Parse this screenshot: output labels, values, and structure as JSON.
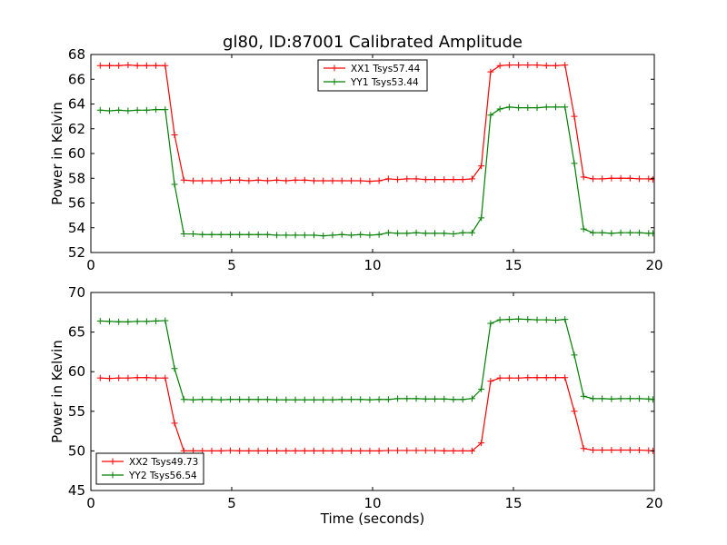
{
  "figure": {
    "title": "gl80, ID:87001 Calibrated Amplitude"
  },
  "chart_data": [
    {
      "type": "line",
      "xlabel": "",
      "ylabel": "Power in Kelvin",
      "xlim": [
        0,
        20
      ],
      "ylim": [
        52,
        68
      ],
      "xticks": [
        0,
        5,
        10,
        15,
        20
      ],
      "yticks": [
        52,
        54,
        56,
        58,
        60,
        62,
        64,
        66,
        68
      ],
      "legend_position": "top-center",
      "grid": false,
      "x": [
        0.33,
        0.66,
        0.99,
        1.32,
        1.65,
        1.98,
        2.31,
        2.64,
        2.97,
        3.3,
        3.63,
        3.96,
        4.29,
        4.62,
        4.95,
        5.28,
        5.61,
        5.94,
        6.27,
        6.6,
        6.93,
        7.26,
        7.59,
        7.92,
        8.25,
        8.58,
        8.91,
        9.24,
        9.57,
        9.9,
        10.23,
        10.56,
        10.89,
        11.22,
        11.55,
        11.88,
        12.21,
        12.54,
        12.87,
        13.2,
        13.53,
        13.86,
        14.19,
        14.52,
        14.85,
        15.18,
        15.51,
        15.84,
        16.17,
        16.5,
        16.83,
        17.16,
        17.49,
        17.82,
        18.15,
        18.48,
        18.81,
        19.14,
        19.47,
        19.8,
        19.95
      ],
      "series": [
        {
          "name": "XX1 Tsys57.44",
          "color": "#ff0000",
          "values": [
            67.1,
            67.1,
            67.1,
            67.15,
            67.1,
            67.1,
            67.1,
            67.1,
            61.5,
            57.85,
            57.8,
            57.8,
            57.8,
            57.8,
            57.85,
            57.85,
            57.8,
            57.85,
            57.8,
            57.85,
            57.8,
            57.85,
            57.85,
            57.8,
            57.8,
            57.8,
            57.8,
            57.8,
            57.8,
            57.75,
            57.8,
            57.95,
            57.9,
            57.95,
            57.95,
            57.9,
            57.9,
            57.9,
            57.9,
            57.9,
            57.95,
            59.0,
            66.6,
            67.1,
            67.15,
            67.15,
            67.15,
            67.15,
            67.1,
            67.1,
            67.15,
            63.0,
            58.1,
            57.95,
            57.95,
            58.0,
            58.0,
            58.0,
            57.95,
            57.95,
            57.9
          ]
        },
        {
          "name": "YY1 Tsys53.44",
          "color": "#008000",
          "values": [
            63.5,
            63.45,
            63.5,
            63.45,
            63.5,
            63.5,
            63.55,
            63.55,
            57.5,
            53.5,
            53.5,
            53.45,
            53.45,
            53.45,
            53.45,
            53.45,
            53.45,
            53.45,
            53.45,
            53.4,
            53.4,
            53.4,
            53.4,
            53.4,
            53.35,
            53.4,
            53.45,
            53.4,
            53.45,
            53.4,
            53.45,
            53.6,
            53.55,
            53.55,
            53.6,
            53.55,
            53.55,
            53.55,
            53.5,
            53.6,
            53.6,
            54.8,
            63.1,
            63.6,
            63.75,
            63.7,
            63.7,
            63.7,
            63.75,
            63.75,
            63.75,
            59.2,
            53.9,
            53.6,
            53.6,
            53.55,
            53.6,
            53.6,
            53.6,
            53.55,
            53.55
          ]
        }
      ]
    },
    {
      "type": "line",
      "xlabel": "Time (seconds)",
      "ylabel": "Power in Kelvin",
      "xlim": [
        0,
        20
      ],
      "ylim": [
        45,
        70
      ],
      "xticks": [
        0,
        5,
        10,
        15,
        20
      ],
      "yticks": [
        45,
        50,
        55,
        60,
        65,
        70
      ],
      "legend_position": "lower-left",
      "grid": false,
      "x": [
        0.33,
        0.66,
        0.99,
        1.32,
        1.65,
        1.98,
        2.31,
        2.64,
        2.97,
        3.3,
        3.63,
        3.96,
        4.29,
        4.62,
        4.95,
        5.28,
        5.61,
        5.94,
        6.27,
        6.6,
        6.93,
        7.26,
        7.59,
        7.92,
        8.25,
        8.58,
        8.91,
        9.24,
        9.57,
        9.9,
        10.23,
        10.56,
        10.89,
        11.22,
        11.55,
        11.88,
        12.21,
        12.54,
        12.87,
        13.2,
        13.53,
        13.86,
        14.19,
        14.52,
        14.85,
        15.18,
        15.51,
        15.84,
        16.17,
        16.5,
        16.83,
        17.16,
        17.49,
        17.82,
        18.15,
        18.48,
        18.81,
        19.14,
        19.47,
        19.8,
        19.95
      ],
      "series": [
        {
          "name": "XX2 Tsys49.73",
          "color": "#ff0000",
          "values": [
            59.2,
            59.15,
            59.2,
            59.2,
            59.25,
            59.25,
            59.2,
            59.2,
            53.5,
            50.0,
            50.0,
            50.0,
            50.0,
            50.0,
            50.05,
            50.0,
            50.0,
            50.0,
            50.0,
            50.0,
            50.0,
            50.0,
            50.0,
            50.0,
            50.0,
            50.0,
            50.0,
            50.0,
            50.0,
            50.0,
            50.0,
            50.05,
            50.05,
            50.05,
            50.05,
            50.05,
            50.05,
            50.0,
            50.0,
            50.0,
            50.0,
            51.0,
            58.8,
            59.2,
            59.2,
            59.2,
            59.25,
            59.25,
            59.25,
            59.25,
            59.25,
            55.0,
            50.3,
            50.1,
            50.1,
            50.1,
            50.1,
            50.1,
            50.1,
            50.05,
            50.0
          ]
        },
        {
          "name": "YY2 Tsys56.54",
          "color": "#008000",
          "values": [
            66.4,
            66.35,
            66.3,
            66.3,
            66.35,
            66.35,
            66.4,
            66.45,
            60.4,
            56.5,
            56.45,
            56.5,
            56.5,
            56.45,
            56.5,
            56.5,
            56.5,
            56.5,
            56.5,
            56.45,
            56.45,
            56.45,
            56.45,
            56.45,
            56.45,
            56.45,
            56.5,
            56.5,
            56.5,
            56.45,
            56.5,
            56.5,
            56.6,
            56.6,
            56.6,
            56.55,
            56.55,
            56.55,
            56.5,
            56.5,
            56.6,
            57.8,
            66.1,
            66.55,
            66.6,
            66.65,
            66.6,
            66.55,
            66.55,
            66.5,
            66.6,
            62.1,
            56.9,
            56.6,
            56.6,
            56.55,
            56.6,
            56.6,
            56.6,
            56.55,
            56.5
          ]
        }
      ]
    }
  ]
}
